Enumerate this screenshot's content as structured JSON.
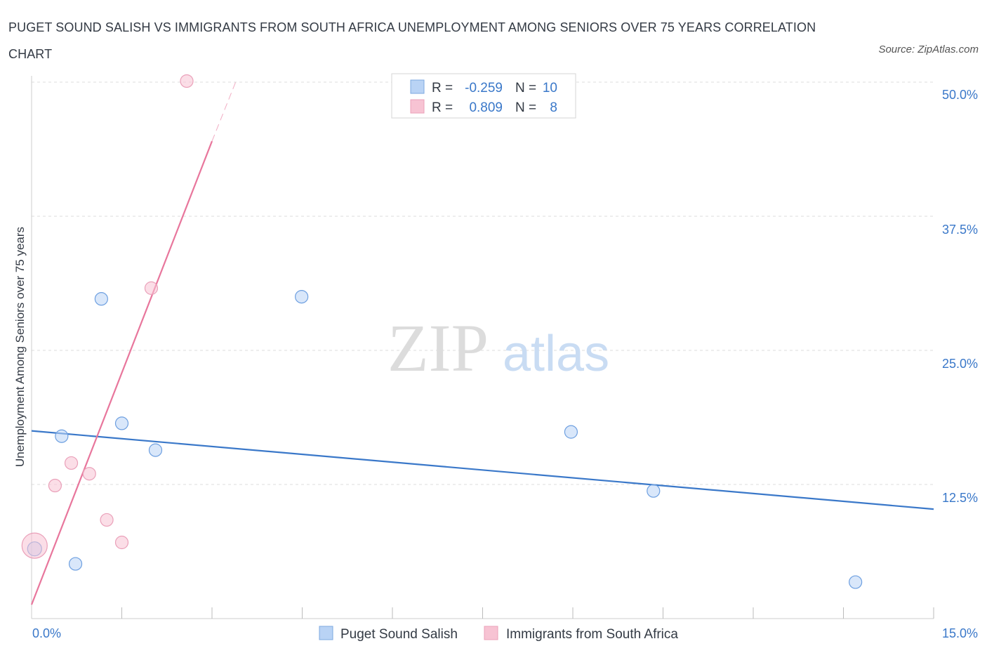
{
  "title": "PUGET SOUND SALISH VS IMMIGRANTS FROM SOUTH AFRICA UNEMPLOYMENT AMONG SENIORS OVER 75 YEARS CORRELATION CHART",
  "source": "Source: ZipAtlas.com",
  "watermark": {
    "zip": "ZIP",
    "atlas": "atlas"
  },
  "colors": {
    "blue": "#3a78c9",
    "blue_fill": "#b9d3f5",
    "pink": "#e8769c",
    "pink_fill": "#f7c3d3",
    "grid": "#dddddd"
  },
  "legend": {
    "r_label": "R =",
    "n_label": "N =",
    "rows": [
      {
        "r": "-0.259",
        "n": "10"
      },
      {
        "r": "0.809",
        "n": "8"
      }
    ]
  },
  "chart_data": {
    "type": "scatter",
    "title": "PUGET SOUND SALISH VS IMMIGRANTS FROM SOUTH AFRICA UNEMPLOYMENT AMONG SENIORS OVER 75 YEARS CORRELATION CHART",
    "xlabel": "",
    "ylabel": "Unemployment Among Seniors over 75 years",
    "xlim": [
      0,
      15
    ],
    "ylim": [
      0,
      50
    ],
    "x_tick_labels": [
      "0.0%",
      "15.0%"
    ],
    "y_tick_labels": [
      "12.5%",
      "25.0%",
      "37.5%",
      "50.0%"
    ],
    "y_ticks": [
      12.5,
      25.0,
      37.5,
      50.0
    ],
    "series": [
      {
        "name": "Puget Sound Salish",
        "color": "#3a78c9",
        "points": [
          {
            "x": 0.05,
            "y": 6.5,
            "size": 10
          },
          {
            "x": 0.5,
            "y": 17.0,
            "size": 9
          },
          {
            "x": 0.73,
            "y": 5.1,
            "size": 9
          },
          {
            "x": 1.16,
            "y": 29.8,
            "size": 9
          },
          {
            "x": 1.5,
            "y": 18.2,
            "size": 9
          },
          {
            "x": 2.06,
            "y": 15.7,
            "size": 9
          },
          {
            "x": 4.49,
            "y": 30.0,
            "size": 9
          },
          {
            "x": 8.97,
            "y": 17.4,
            "size": 9
          },
          {
            "x": 10.34,
            "y": 11.9,
            "size": 9
          },
          {
            "x": 13.7,
            "y": 3.4,
            "size": 9
          }
        ],
        "trend": {
          "x": [
            0,
            15
          ],
          "y": [
            17.5,
            10.2
          ]
        }
      },
      {
        "name": "Immigrants from South Africa",
        "color": "#e8769c",
        "points": [
          {
            "x": 0.05,
            "y": 6.8,
            "size": 18
          },
          {
            "x": 0.39,
            "y": 12.4,
            "size": 9
          },
          {
            "x": 0.66,
            "y": 14.5,
            "size": 9
          },
          {
            "x": 0.96,
            "y": 13.5,
            "size": 9
          },
          {
            "x": 1.25,
            "y": 9.2,
            "size": 9
          },
          {
            "x": 1.5,
            "y": 7.1,
            "size": 9
          },
          {
            "x": 1.99,
            "y": 30.8,
            "size": 9
          },
          {
            "x": 2.58,
            "y": 50.1,
            "size": 9
          }
        ],
        "trend": {
          "x": [
            0,
            3.0
          ],
          "y": [
            1.3,
            44.5
          ]
        },
        "trend_dashed": {
          "x": [
            3.0,
            3.4
          ],
          "y": [
            44.5,
            50.1
          ]
        }
      }
    ]
  }
}
